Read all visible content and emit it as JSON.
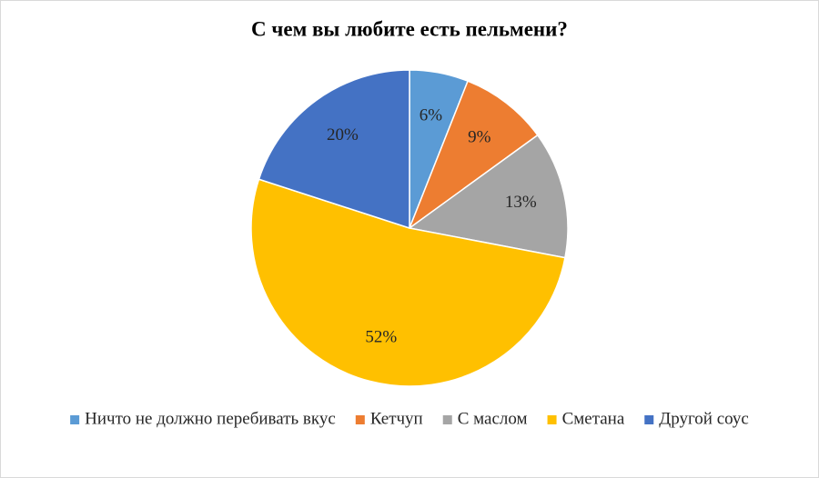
{
  "chart_data": {
    "type": "pie",
    "title": "С чем вы любите есть пельмени?",
    "categories": [
      "Ничто не должно перебивать вкус",
      "Кетчуп",
      "С маслом",
      "Сметана",
      "Другой соус"
    ],
    "values": [
      6,
      9,
      13,
      52,
      20
    ],
    "value_labels": [
      "6%",
      "9%",
      "13%",
      "52%",
      "20%"
    ],
    "colors": [
      "#5b9bd5",
      "#ed7d31",
      "#a5a5a5",
      "#ffc000",
      "#4472c4"
    ],
    "legend": "bottom"
  }
}
